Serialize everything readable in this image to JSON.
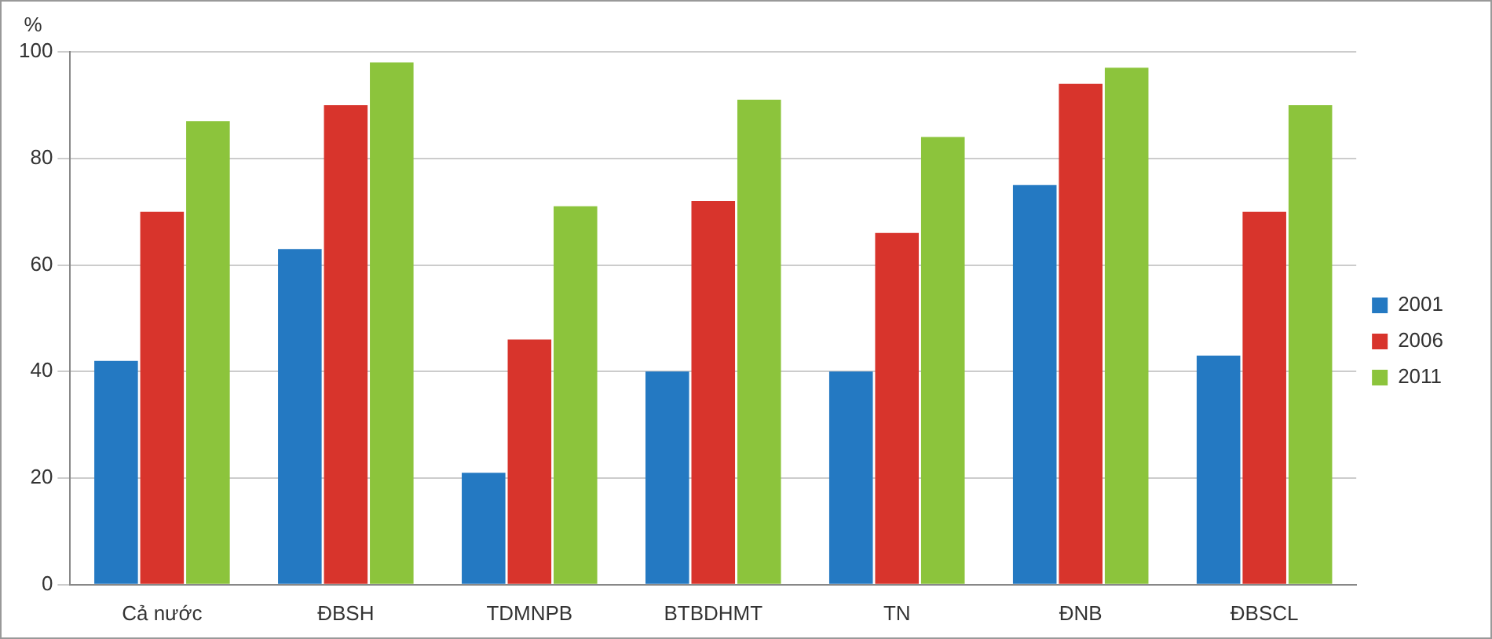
{
  "chart_data": {
    "type": "bar",
    "ylabel": "%",
    "categories": [
      "Cả nước",
      "ĐBSH",
      "TDMNPB",
      "BTBDHMT",
      "TN",
      "ĐNB",
      "ĐBSCL"
    ],
    "series": [
      {
        "name": "2001",
        "color": "#2479c2",
        "values": [
          42,
          63,
          21,
          40,
          40,
          75,
          43
        ]
      },
      {
        "name": "2006",
        "color": "#d8342c",
        "values": [
          70,
          90,
          46,
          72,
          66,
          94,
          70
        ]
      },
      {
        "name": "2011",
        "color": "#8cc43c",
        "values": [
          87,
          98,
          71,
          91,
          84,
          97,
          90
        ]
      }
    ],
    "ylim": [
      0,
      100
    ],
    "yticks": [
      0,
      20,
      40,
      60,
      80,
      100
    ],
    "grid": "y",
    "legend": "right"
  }
}
